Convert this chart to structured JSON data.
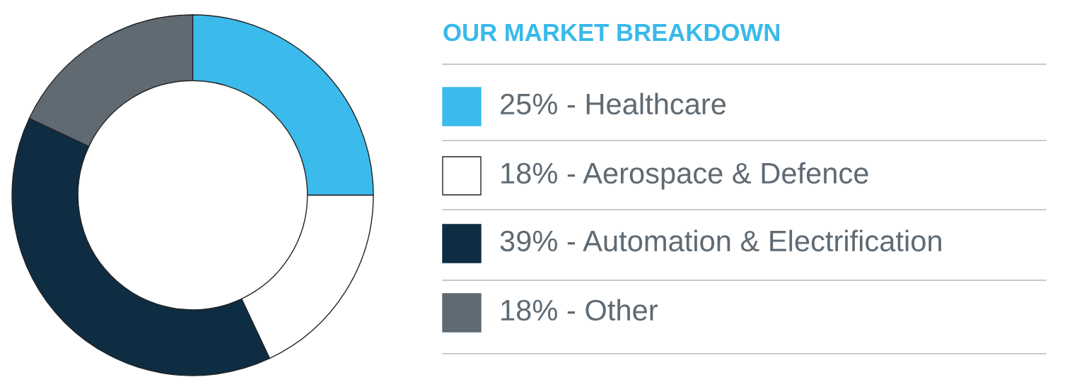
{
  "chart_data": {
    "type": "donut",
    "title": "OUR MARKET BREAKDOWN",
    "categories": [
      "25% - Healthcare",
      "18% - Aerospace & Defence",
      "39% - Automation & Electrification",
      "18% - Other"
    ],
    "values": [
      25,
      18,
      39,
      18
    ],
    "colors": [
      "#3bbbec",
      "#ffffff",
      "#0e2d43",
      "#5f6a73"
    ],
    "legend": "right"
  }
}
